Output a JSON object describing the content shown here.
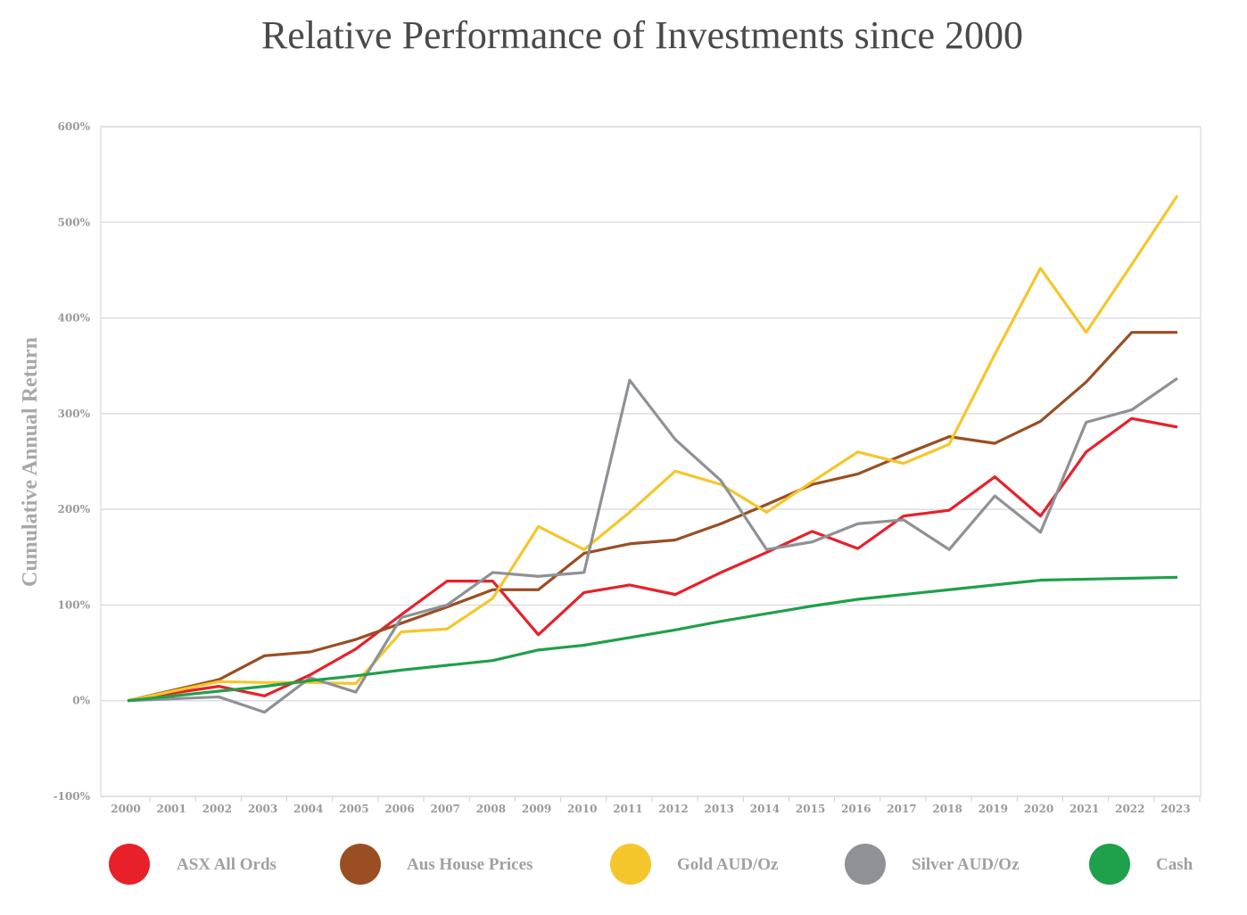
{
  "chart_data": {
    "type": "line",
    "title": "Relative Performance of Investments since 2000",
    "xlabel": "",
    "ylabel": "Cumulative Annual Return",
    "ylim": [
      -100,
      600
    ],
    "yticks": [
      -100,
      0,
      100,
      200,
      300,
      400,
      500,
      600
    ],
    "ytick_labels": [
      "-100%",
      "0%",
      "100%",
      "200%",
      "300%",
      "400%",
      "500%",
      "600%"
    ],
    "grid": true,
    "legend": "bottom",
    "x": [
      "2000",
      "2001",
      "2002",
      "2003",
      "2004",
      "2005",
      "2006",
      "2007",
      "2008",
      "2009",
      "2010",
      "2011",
      "2012",
      "2013",
      "2014",
      "2015",
      "2016",
      "2017",
      "2018",
      "2019",
      "2020",
      "2021",
      "2022",
      "2023"
    ],
    "series": [
      {
        "name": "ASX All Ords",
        "color": "#e8202a",
        "values": [
          0,
          8,
          15,
          5,
          27,
          54,
          90,
          125,
          125,
          69,
          113,
          121,
          111,
          134,
          155,
          177,
          159,
          193,
          199,
          234,
          193,
          260,
          295,
          286
        ]
      },
      {
        "name": "Aus House Prices",
        "color": "#9a4e22",
        "values": [
          0,
          11,
          22,
          47,
          51,
          64,
          81,
          98,
          116,
          116,
          154,
          164,
          168,
          185,
          205,
          226,
          237,
          257,
          276,
          269,
          292,
          333,
          385,
          385
        ]
      },
      {
        "name": "Gold AUD/Oz",
        "color": "#f5c62c",
        "values": [
          0,
          10,
          20,
          19,
          19,
          18,
          72,
          75,
          107,
          182,
          158,
          197,
          240,
          226,
          197,
          229,
          260,
          248,
          268,
          362,
          452,
          385,
          456,
          528
        ]
      },
      {
        "name": "Silver AUD/Oz",
        "color": "#8e9196",
        "values": [
          0,
          2,
          4,
          -12,
          24,
          9,
          87,
          100,
          134,
          130,
          134,
          335,
          273,
          230,
          158,
          166,
          185,
          189,
          158,
          214,
          176,
          291,
          304,
          337
        ]
      },
      {
        "name": "Cash",
        "color": "#1fa04a",
        "values": [
          0,
          5,
          10,
          15,
          21,
          26,
          32,
          37,
          42,
          53,
          58,
          66,
          74,
          83,
          91,
          99,
          106,
          111,
          116,
          121,
          126,
          127,
          128,
          129
        ]
      }
    ]
  }
}
